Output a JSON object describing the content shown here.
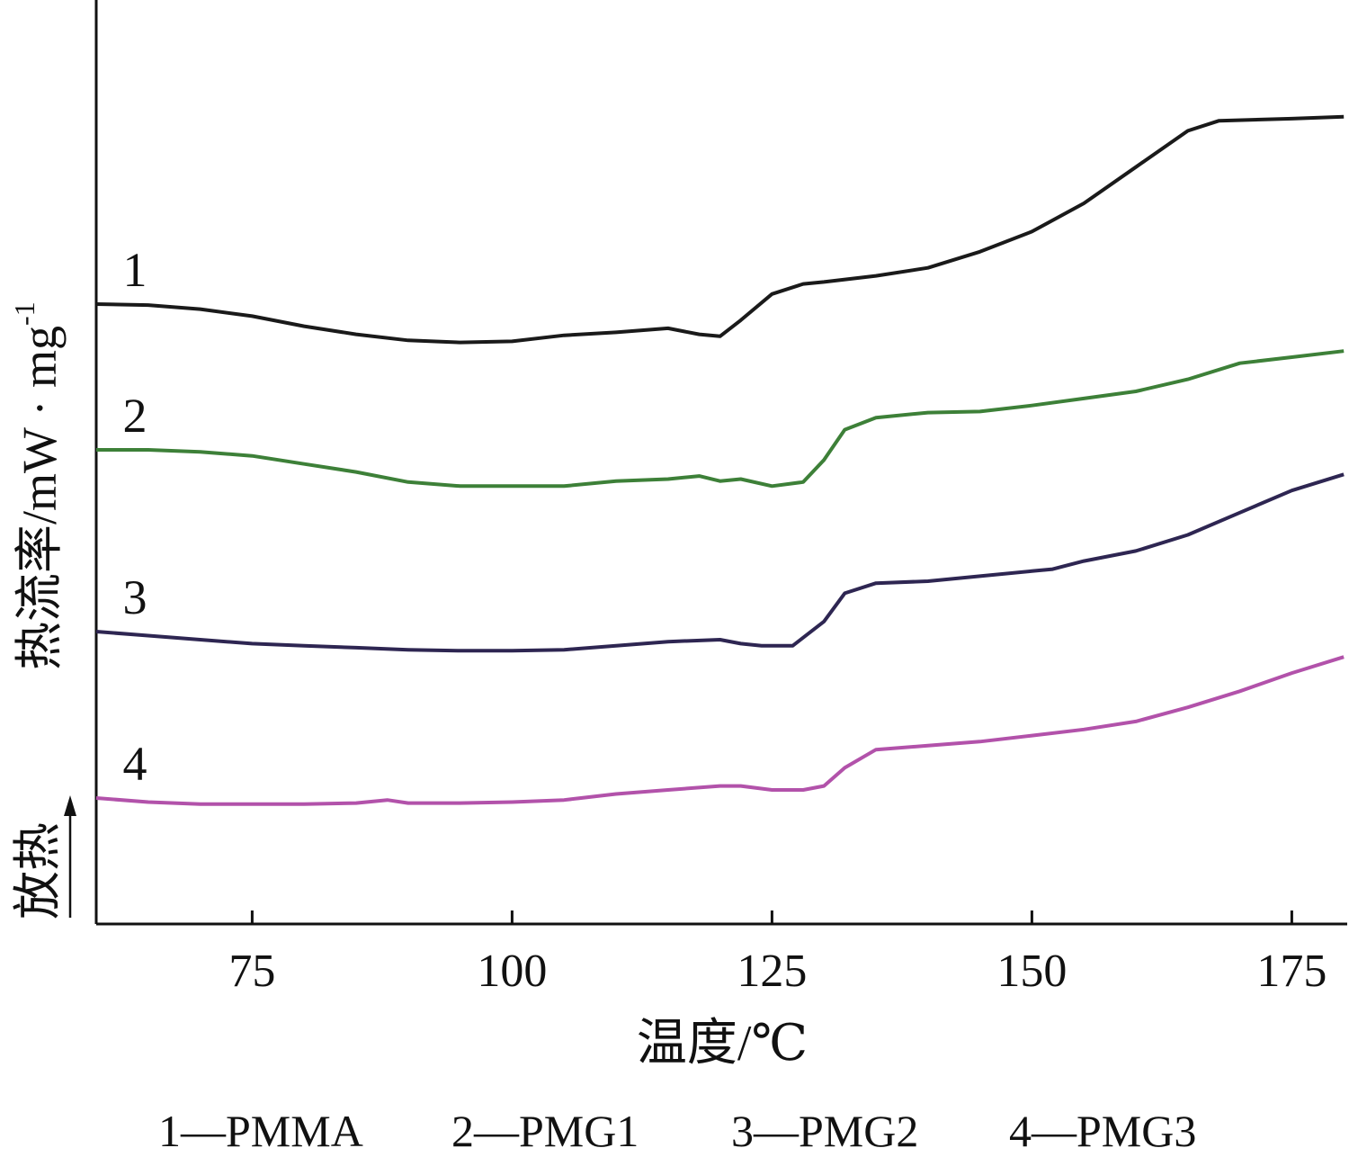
{
  "chart_data": {
    "type": "line",
    "xlabel": "温度/℃",
    "ylabel": "热流率/mW · mg",
    "ylabel_sup": "-1",
    "exo_label": "放热",
    "xlim": [
      60,
      180
    ],
    "xticks": [
      75,
      100,
      125,
      150,
      175
    ],
    "tick_labels": [
      "75",
      "100",
      "125",
      "150",
      "175"
    ],
    "grid": false,
    "legend_text": [
      "1—PMMA",
      "2—PMG1",
      "3—PMG2",
      "4—PMG3"
    ],
    "series": [
      {
        "name": "PMMA",
        "label": "1",
        "color": "#1a1a1a",
        "points": [
          [
            60,
            0.0
          ],
          [
            65,
            -0.01
          ],
          [
            70,
            -0.05
          ],
          [
            75,
            -0.12
          ],
          [
            80,
            -0.22
          ],
          [
            85,
            -0.3
          ],
          [
            90,
            -0.36
          ],
          [
            95,
            -0.38
          ],
          [
            100,
            -0.37
          ],
          [
            105,
            -0.31
          ],
          [
            110,
            -0.28
          ],
          [
            115,
            -0.24
          ],
          [
            118,
            -0.3
          ],
          [
            120,
            -0.32
          ],
          [
            122,
            -0.16
          ],
          [
            125,
            0.1
          ],
          [
            128,
            0.2
          ],
          [
            130,
            0.22
          ],
          [
            135,
            0.28
          ],
          [
            140,
            0.36
          ],
          [
            145,
            0.52
          ],
          [
            150,
            0.72
          ],
          [
            155,
            1.0
          ],
          [
            160,
            1.36
          ],
          [
            165,
            1.72
          ],
          [
            168,
            1.82
          ],
          [
            175,
            1.84
          ],
          [
            180,
            1.86
          ]
        ]
      },
      {
        "name": "PMG1",
        "label": "2",
        "color": "#3d8038",
        "points": [
          [
            60,
            0.0
          ],
          [
            65,
            0.0
          ],
          [
            70,
            -0.02
          ],
          [
            75,
            -0.06
          ],
          [
            80,
            -0.14
          ],
          [
            85,
            -0.22
          ],
          [
            90,
            -0.32
          ],
          [
            95,
            -0.36
          ],
          [
            100,
            -0.36
          ],
          [
            105,
            -0.36
          ],
          [
            110,
            -0.31
          ],
          [
            115,
            -0.29
          ],
          [
            118,
            -0.26
          ],
          [
            120,
            -0.31
          ],
          [
            122,
            -0.29
          ],
          [
            125,
            -0.36
          ],
          [
            128,
            -0.32
          ],
          [
            130,
            -0.1
          ],
          [
            132,
            0.2
          ],
          [
            135,
            0.32
          ],
          [
            140,
            0.37
          ],
          [
            145,
            0.38
          ],
          [
            150,
            0.44
          ],
          [
            155,
            0.51
          ],
          [
            160,
            0.58
          ],
          [
            165,
            0.7
          ],
          [
            170,
            0.86
          ],
          [
            175,
            0.92
          ],
          [
            180,
            0.98
          ]
        ]
      },
      {
        "name": "PMG2",
        "label": "3",
        "color": "#2e2652",
        "points": [
          [
            60,
            0.0
          ],
          [
            65,
            -0.04
          ],
          [
            70,
            -0.08
          ],
          [
            75,
            -0.12
          ],
          [
            80,
            -0.14
          ],
          [
            85,
            -0.16
          ],
          [
            90,
            -0.18
          ],
          [
            95,
            -0.19
          ],
          [
            100,
            -0.19
          ],
          [
            105,
            -0.18
          ],
          [
            110,
            -0.14
          ],
          [
            115,
            -0.1
          ],
          [
            120,
            -0.08
          ],
          [
            122,
            -0.12
          ],
          [
            124,
            -0.14
          ],
          [
            127,
            -0.14
          ],
          [
            130,
            0.1
          ],
          [
            132,
            0.38
          ],
          [
            135,
            0.48
          ],
          [
            140,
            0.5
          ],
          [
            145,
            0.55
          ],
          [
            150,
            0.6
          ],
          [
            152,
            0.62
          ],
          [
            155,
            0.7
          ],
          [
            160,
            0.8
          ],
          [
            165,
            0.96
          ],
          [
            170,
            1.18
          ],
          [
            175,
            1.4
          ],
          [
            180,
            1.56
          ]
        ]
      },
      {
        "name": "PMG3",
        "label": "4",
        "color": "#b252aa",
        "points": [
          [
            60,
            0.0
          ],
          [
            65,
            -0.04
          ],
          [
            70,
            -0.06
          ],
          [
            75,
            -0.06
          ],
          [
            80,
            -0.06
          ],
          [
            85,
            -0.05
          ],
          [
            88,
            -0.02
          ],
          [
            90,
            -0.05
          ],
          [
            95,
            -0.05
          ],
          [
            100,
            -0.04
          ],
          [
            105,
            -0.02
          ],
          [
            110,
            0.04
          ],
          [
            115,
            0.08
          ],
          [
            120,
            0.12
          ],
          [
            122,
            0.12
          ],
          [
            125,
            0.08
          ],
          [
            128,
            0.08
          ],
          [
            130,
            0.12
          ],
          [
            132,
            0.3
          ],
          [
            135,
            0.48
          ],
          [
            140,
            0.52
          ],
          [
            145,
            0.56
          ],
          [
            150,
            0.62
          ],
          [
            155,
            0.68
          ],
          [
            160,
            0.76
          ],
          [
            165,
            0.9
          ],
          [
            170,
            1.06
          ],
          [
            175,
            1.24
          ],
          [
            180,
            1.4
          ]
        ]
      }
    ]
  }
}
